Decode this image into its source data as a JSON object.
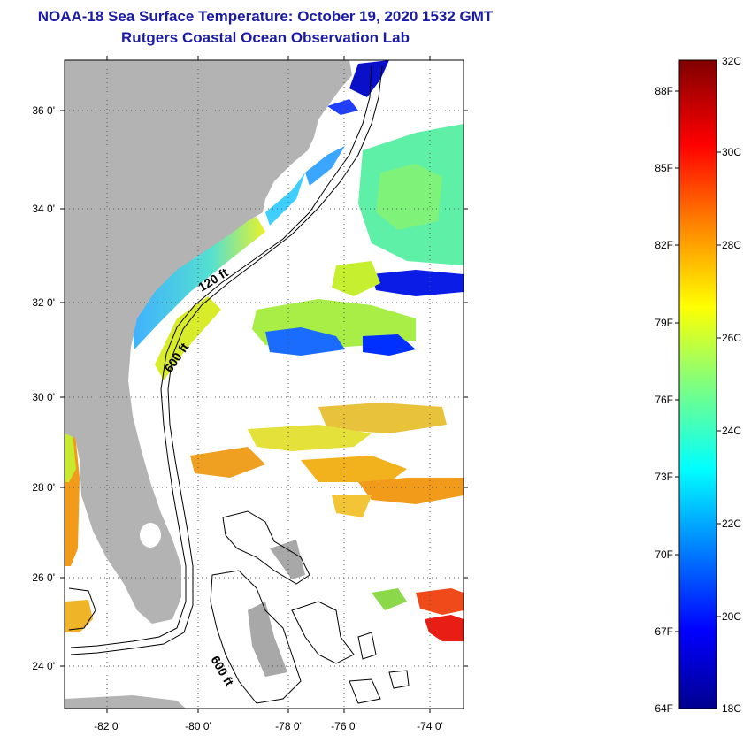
{
  "title": "NOAA-18 Sea Surface Temperature:  October 19, 2020 1532 GMT",
  "subtitle": "Rutgers Coastal Ocean Observation Lab",
  "map": {
    "lat_labels": [
      "36 0'",
      "34 0'",
      "32 0'",
      "30 0'",
      "28 0'",
      "26 0'",
      "24 0'"
    ],
    "lon_labels": [
      "-82 0'",
      "-80 0'",
      "-78 0'",
      "-76 0'",
      "-74 0'"
    ],
    "isobath_labels": [
      "120 ft",
      "600 ft",
      "600 ft"
    ],
    "land_color": "#b3b3b3",
    "cloud_color": "#ffffff"
  },
  "colorbar": {
    "fahrenheit": [
      "88F",
      "85F",
      "82F",
      "79F",
      "76F",
      "73F",
      "70F",
      "67F",
      "64F"
    ],
    "celsius": [
      "32C",
      "30C",
      "28C",
      "26C",
      "24C",
      "22C",
      "20C",
      "18C"
    ]
  }
}
